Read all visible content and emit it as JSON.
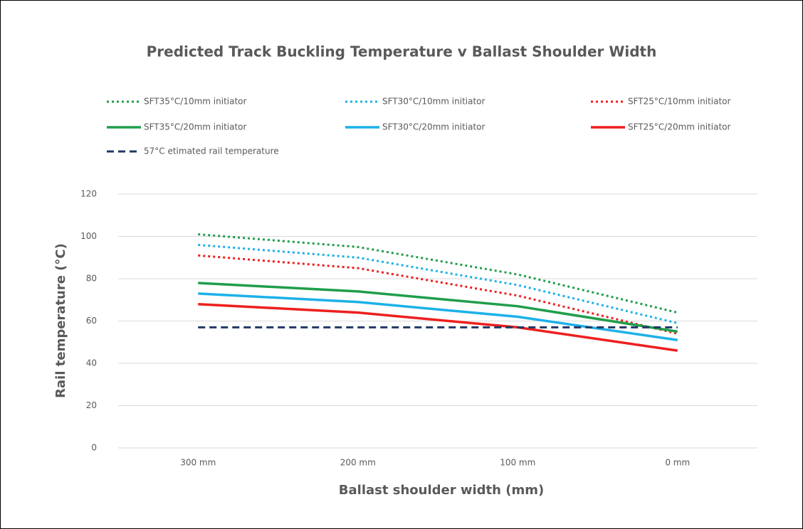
{
  "chart_data": {
    "type": "line",
    "title": "Predicted Track Buckling Temperature v Ballast Shoulder Width",
    "x_label": "Ballast shoulder width (mm)",
    "y_label": "Rail temperature (°C)",
    "categories": [
      "300 mm",
      "200 mm",
      "100 mm",
      "0 mm"
    ],
    "ylim": [
      0,
      120
    ],
    "yticks": [
      0,
      20,
      40,
      60,
      80,
      100,
      120
    ],
    "grid": true,
    "legend": "top",
    "series": [
      {
        "name": "SFT35°C/10mm initiator",
        "color": "#1f9e4a",
        "dash": "dotted",
        "values": [
          101,
          95,
          82,
          64
        ]
      },
      {
        "name": "SFT30°C/10mm initiator",
        "color": "#1cb1e9",
        "dash": "dotted",
        "values": [
          96,
          90,
          77,
          59
        ]
      },
      {
        "name": "SFT25°C/10mm initiator",
        "color": "#ee1f1f",
        "dash": "dotted",
        "values": [
          91,
          85,
          72,
          54
        ]
      },
      {
        "name": "SFT35°C/20mm initiator",
        "color": "#1f9e4a",
        "dash": "solid",
        "values": [
          78,
          74,
          67,
          55
        ]
      },
      {
        "name": "SFT30°C/20mm initiator",
        "color": "#1cb1e9",
        "dash": "solid",
        "values": [
          73,
          69,
          62,
          51
        ]
      },
      {
        "name": "SFT25°C/20mm initiator",
        "color": "#ee1f1f",
        "dash": "solid",
        "values": [
          68,
          64,
          57,
          46
        ]
      },
      {
        "name": "57°C etimated rail temperature",
        "color": "#203864",
        "dash": "dashed",
        "values": [
          57,
          57,
          57,
          57
        ]
      }
    ]
  }
}
